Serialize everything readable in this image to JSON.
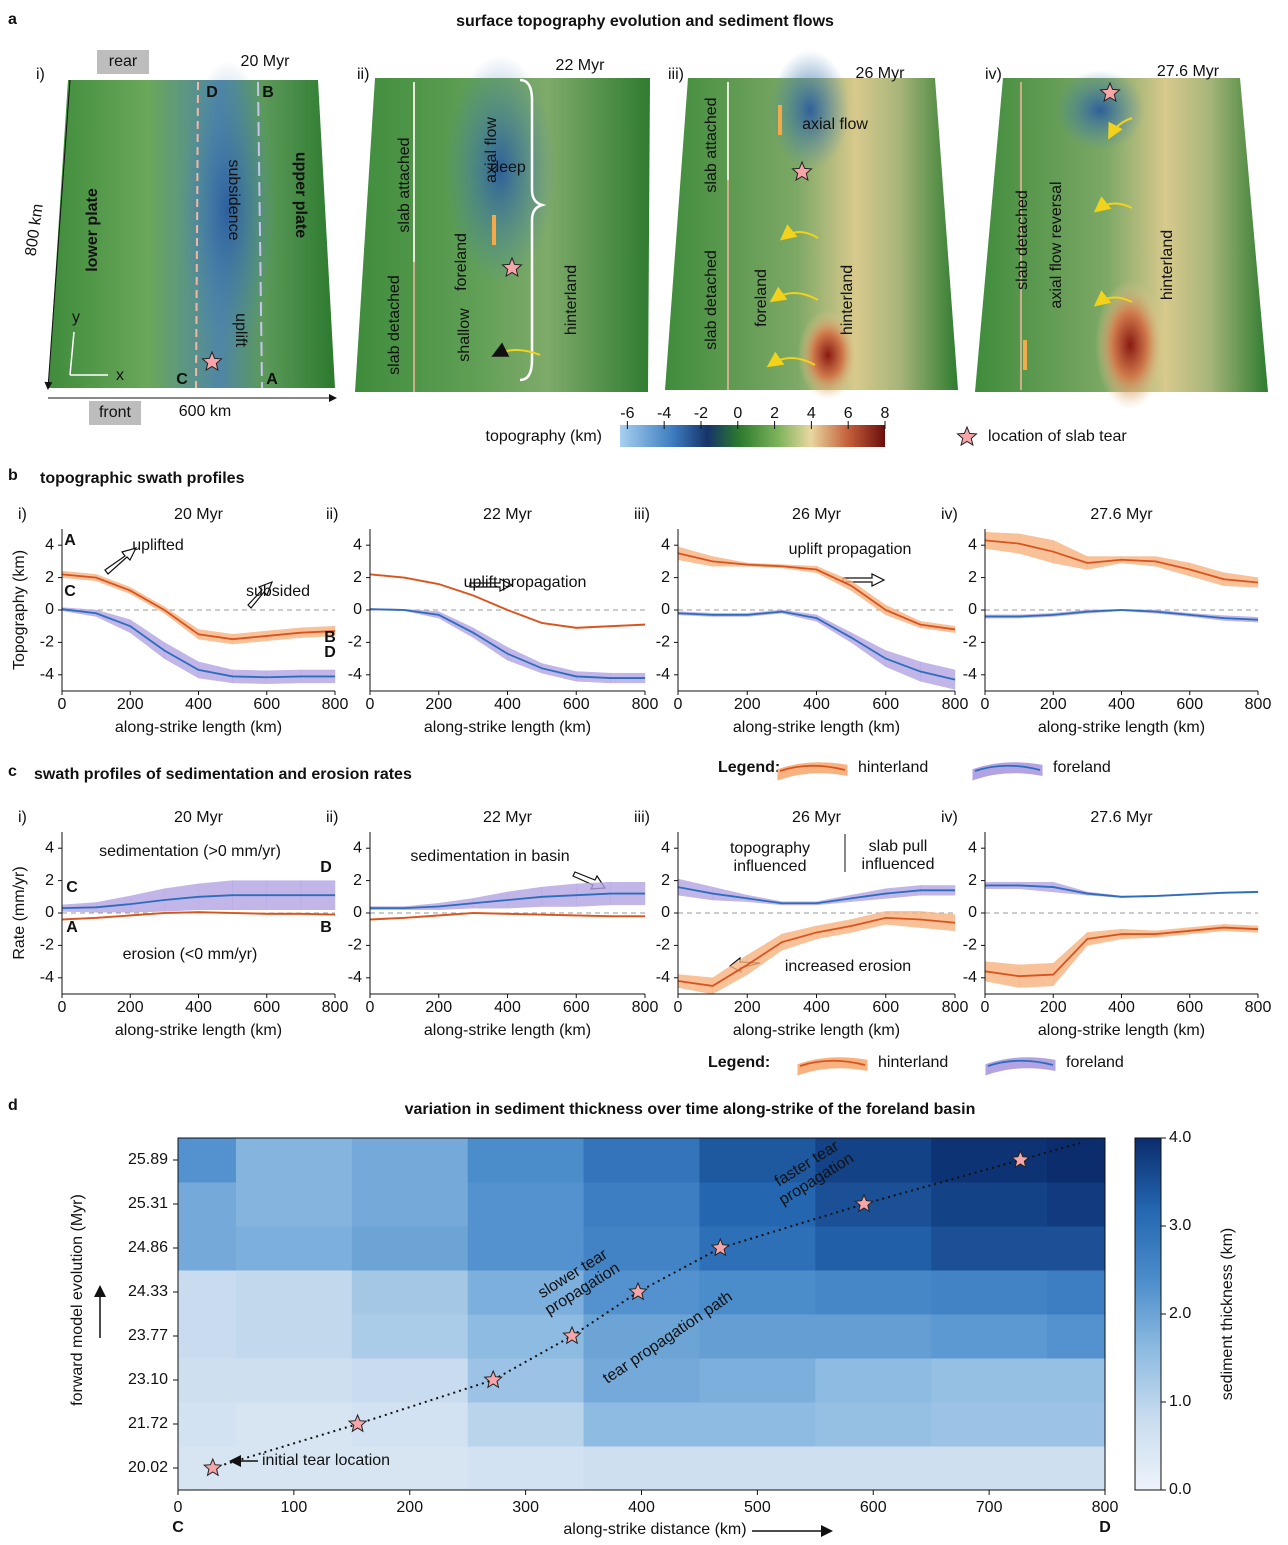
{
  "figure": {
    "a_label": "a",
    "a_title": "surface topography evolution and sediment flows",
    "b_label": "b",
    "b_title": "topographic swath profiles",
    "c_label": "c",
    "c_title": "swath profiles of sedimentation and erosion rates",
    "d_label": "d",
    "d_title": "variation in sediment thickness over time along-strike of the foreland basin"
  },
  "maps": [
    {
      "label": "i)",
      "time": "20 Myr",
      "annotations": [
        "rear",
        "front",
        "D",
        "B",
        "C",
        "A",
        "subsidence",
        "upper plate",
        "lower plate",
        "uplift",
        "800 km",
        "600 km",
        "y",
        "x"
      ]
    },
    {
      "label": "ii)",
      "time": "22 Myr",
      "annotations": [
        "slab attached",
        "slab detached",
        "foreland",
        "deep",
        "shallow",
        "axial flow",
        "hinterland"
      ]
    },
    {
      "label": "iii)",
      "time": "26 Myr",
      "annotations": [
        "slab attached",
        "slab detached",
        "axial flow",
        "foreland",
        "hinterland"
      ]
    },
    {
      "label": "iv)",
      "time": "27.6 Myr",
      "annotations": [
        "slab detached",
        "axial flow reversal",
        "hinterland"
      ]
    }
  ],
  "topo_colorbar": {
    "label": "topography (km)",
    "lim": [
      -6.4,
      8
    ],
    "ticks": [
      -6,
      -4,
      -2,
      0,
      2,
      4,
      6,
      8
    ]
  },
  "tear_legend": "location of slab tear",
  "chart_data": [
    {
      "type": "line",
      "label": "i)",
      "title": "20 Myr",
      "y_label": "Topography (km)",
      "x_label": "along-strike length (km)",
      "legend_title": "Legend:",
      "x": [
        0,
        100,
        200,
        300,
        400,
        500,
        600,
        700,
        800
      ],
      "xlim": [
        0,
        800
      ],
      "xticks": [
        0,
        200,
        400,
        600,
        800
      ],
      "ylim": [
        -5,
        5
      ],
      "yticks": [
        -4,
        -2,
        0,
        2,
        4
      ],
      "zero_line": true,
      "series": [
        {
          "name": "hinterland",
          "color": "#d9531e",
          "band_color": "#f7b27f",
          "values": [
            2.2,
            2.0,
            1.2,
            0.0,
            -1.5,
            -1.8,
            -1.6,
            -1.4,
            -1.3
          ],
          "spread": [
            0.2,
            0.2,
            0.2,
            0.2,
            0.3,
            0.3,
            0.3,
            0.3,
            0.3
          ]
        },
        {
          "name": "foreland",
          "color": "#2a6ebd",
          "band_color": "#b3a3e3",
          "values": [
            0.05,
            -0.2,
            -1.0,
            -2.5,
            -3.7,
            -4.1,
            -4.15,
            -4.1,
            -4.1
          ],
          "spread": [
            0.1,
            0.2,
            0.4,
            0.5,
            0.5,
            0.4,
            0.4,
            0.4,
            0.4
          ]
        }
      ],
      "annotations": [
        "A",
        "C",
        "B",
        "D",
        "uplifted",
        "subsided"
      ]
    },
    {
      "type": "line",
      "label": "ii)",
      "title": "22 Myr",
      "x_label": "along-strike length (km)",
      "x": [
        0,
        100,
        200,
        300,
        400,
        500,
        600,
        700,
        800
      ],
      "xlim": [
        0,
        800
      ],
      "xticks": [
        0,
        200,
        400,
        600,
        800
      ],
      "ylim": [
        -5,
        5
      ],
      "yticks": [
        -4,
        -2,
        0,
        2,
        4
      ],
      "zero_line": true,
      "series": [
        {
          "name": "hinterland",
          "color": "#d9531e",
          "band_color": "#f7b27f",
          "values": [
            2.2,
            2.0,
            1.6,
            0.9,
            0.0,
            -0.8,
            -1.1,
            -1.0,
            -0.9
          ],
          "spread": [
            0.05,
            0.05,
            0.05,
            0.05,
            0.05,
            0.05,
            0.05,
            0.05,
            0.05
          ]
        },
        {
          "name": "foreland",
          "color": "#2a6ebd",
          "band_color": "#b3a3e3",
          "values": [
            0.05,
            0.0,
            -0.3,
            -1.4,
            -2.7,
            -3.6,
            -4.1,
            -4.2,
            -4.2
          ],
          "spread": [
            0.05,
            0.05,
            0.2,
            0.3,
            0.4,
            0.3,
            0.3,
            0.3,
            0.3
          ]
        }
      ],
      "annotations": [
        "uplift propagation"
      ]
    },
    {
      "type": "line",
      "label": "iii)",
      "title": "26 Myr",
      "x_label": "along-strike length (km)",
      "x": [
        0,
        100,
        200,
        300,
        400,
        500,
        600,
        700,
        800
      ],
      "xlim": [
        0,
        800
      ],
      "xticks": [
        0,
        200,
        400,
        600,
        800
      ],
      "ylim": [
        -5,
        5
      ],
      "yticks": [
        -4,
        -2,
        0,
        2,
        4
      ],
      "zero_line": true,
      "series": [
        {
          "name": "hinterland",
          "color": "#d9531e",
          "band_color": "#f7b27f",
          "values": [
            3.5,
            3.0,
            2.8,
            2.7,
            2.5,
            1.5,
            0.0,
            -0.9,
            -1.2
          ],
          "spread": [
            0.4,
            0.3,
            0.1,
            0.1,
            0.2,
            0.3,
            0.3,
            0.2,
            0.2
          ]
        },
        {
          "name": "foreland",
          "color": "#2a6ebd",
          "band_color": "#b3a3e3",
          "values": [
            -0.2,
            -0.3,
            -0.3,
            -0.1,
            -0.5,
            -1.7,
            -3.0,
            -3.8,
            -4.3
          ],
          "spread": [
            0.1,
            0.1,
            0.1,
            0.1,
            0.2,
            0.3,
            0.5,
            0.6,
            0.6
          ]
        }
      ],
      "annotations": [
        "uplift propagation"
      ]
    },
    {
      "type": "line",
      "label": "iv)",
      "title": "27.6 Myr",
      "x_label": "along-strike length (km)",
      "x": [
        0,
        100,
        200,
        300,
        400,
        500,
        600,
        700,
        800
      ],
      "xlim": [
        0,
        800
      ],
      "xticks": [
        0,
        200,
        400,
        600,
        800
      ],
      "ylim": [
        -5,
        5
      ],
      "yticks": [
        -4,
        -2,
        0,
        2,
        4
      ],
      "zero_line": true,
      "series": [
        {
          "name": "hinterland",
          "color": "#d9531e",
          "band_color": "#f7b27f",
          "values": [
            4.3,
            4.1,
            3.6,
            2.9,
            3.1,
            3.0,
            2.5,
            1.9,
            1.7
          ],
          "spread": [
            0.5,
            0.6,
            0.7,
            0.4,
            0.2,
            0.3,
            0.4,
            0.4,
            0.3
          ]
        },
        {
          "name": "foreland",
          "color": "#2a6ebd",
          "band_color": "#b3a3e3",
          "values": [
            -0.4,
            -0.4,
            -0.3,
            -0.1,
            0.0,
            -0.1,
            -0.3,
            -0.5,
            -0.6
          ],
          "spread": [
            0.1,
            0.1,
            0.1,
            0.1,
            0.05,
            0.1,
            0.1,
            0.15,
            0.15
          ]
        }
      ]
    },
    {
      "type": "line",
      "label": "i)",
      "title": "20 Myr",
      "y_label": "Rate (mm/yr)",
      "x_label": "along-strike length (km)",
      "legend_title": "Legend:",
      "x": [
        0,
        100,
        200,
        300,
        400,
        500,
        600,
        700,
        800
      ],
      "xlim": [
        0,
        800
      ],
      "xticks": [
        0,
        200,
        400,
        600,
        800
      ],
      "ylim": [
        -5,
        5
      ],
      "yticks": [
        -4,
        -2,
        0,
        2,
        4
      ],
      "zero_line": true,
      "series": [
        {
          "name": "hinterland",
          "color": "#d9531e",
          "band_color": "#f7b27f",
          "values": [
            -0.4,
            -0.3,
            -0.15,
            0.0,
            0.05,
            0.0,
            -0.05,
            -0.05,
            -0.1
          ],
          "spread": [
            0.05,
            0.05,
            0.05,
            0.05,
            0.05,
            0.05,
            0.05,
            0.05,
            0.05
          ]
        },
        {
          "name": "foreland",
          "color": "#2a6ebd",
          "band_color": "#b3a3e3",
          "values": [
            0.3,
            0.35,
            0.55,
            0.8,
            1.0,
            1.1,
            1.1,
            1.1,
            1.1
          ],
          "spread": [
            0.2,
            0.3,
            0.5,
            0.7,
            0.8,
            0.9,
            0.9,
            0.9,
            0.9
          ]
        }
      ],
      "annotations": [
        "sedimentation (>0 mm/yr)",
        "erosion (<0 mm/yr)",
        "C",
        "D",
        "A",
        "B"
      ]
    },
    {
      "type": "line",
      "label": "ii)",
      "title": "22 Myr",
      "x_label": "along-strike length (km)",
      "x": [
        0,
        100,
        200,
        300,
        400,
        500,
        600,
        700,
        800
      ],
      "xlim": [
        0,
        800
      ],
      "xticks": [
        0,
        200,
        400,
        600,
        800
      ],
      "ylim": [
        -5,
        5
      ],
      "yticks": [
        -4,
        -2,
        0,
        2,
        4
      ],
      "zero_line": true,
      "series": [
        {
          "name": "hinterland",
          "color": "#d9531e",
          "band_color": "#f7b27f",
          "values": [
            -0.4,
            -0.3,
            -0.15,
            0.0,
            -0.05,
            -0.1,
            -0.15,
            -0.2,
            -0.2
          ],
          "spread": [
            0.05,
            0.05,
            0.05,
            0.05,
            0.05,
            0.05,
            0.05,
            0.05,
            0.05
          ]
        },
        {
          "name": "foreland",
          "color": "#2a6ebd",
          "band_color": "#b3a3e3",
          "values": [
            0.3,
            0.3,
            0.4,
            0.6,
            0.8,
            1.0,
            1.1,
            1.2,
            1.2
          ],
          "spread": [
            0.1,
            0.1,
            0.2,
            0.3,
            0.5,
            0.6,
            0.7,
            0.7,
            0.7
          ]
        }
      ],
      "annotations": [
        "sedimentation in basin"
      ]
    },
    {
      "type": "line",
      "label": "iii)",
      "title": "26 Myr",
      "x_label": "along-strike length (km)",
      "x": [
        0,
        100,
        200,
        300,
        400,
        500,
        600,
        700,
        800
      ],
      "xlim": [
        0,
        800
      ],
      "xticks": [
        0,
        200,
        400,
        600,
        800
      ],
      "ylim": [
        -5,
        5
      ],
      "yticks": [
        -4,
        -2,
        0,
        2,
        4
      ],
      "zero_line": true,
      "series": [
        {
          "name": "hinterland",
          "color": "#d9531e",
          "band_color": "#f7b27f",
          "values": [
            -4.2,
            -4.5,
            -3.2,
            -1.8,
            -1.2,
            -0.8,
            -0.3,
            -0.4,
            -0.6
          ],
          "spread": [
            0.4,
            0.5,
            0.6,
            0.5,
            0.4,
            0.4,
            0.4,
            0.5,
            0.5
          ]
        },
        {
          "name": "foreland",
          "color": "#2a6ebd",
          "band_color": "#b3a3e3",
          "values": [
            1.6,
            1.2,
            0.9,
            0.6,
            0.6,
            0.9,
            1.2,
            1.4,
            1.4
          ],
          "spread": [
            0.5,
            0.4,
            0.2,
            0.1,
            0.1,
            0.2,
            0.3,
            0.3,
            0.3
          ]
        }
      ],
      "annotations": [
        "topography influenced",
        "slab pull influenced",
        "increased erosion"
      ]
    },
    {
      "type": "line",
      "label": "iv)",
      "title": "27.6 Myr",
      "x_label": "along-strike length (km)",
      "x": [
        0,
        100,
        200,
        300,
        400,
        500,
        600,
        700,
        800
      ],
      "xlim": [
        0,
        800
      ],
      "xticks": [
        0,
        200,
        400,
        600,
        800
      ],
      "ylim": [
        -5,
        5
      ],
      "yticks": [
        -4,
        -2,
        0,
        2,
        4
      ],
      "zero_line": true,
      "series": [
        {
          "name": "hinterland",
          "color": "#d9531e",
          "band_color": "#f7b27f",
          "values": [
            -3.6,
            -3.9,
            -3.8,
            -1.6,
            -1.3,
            -1.3,
            -1.1,
            -0.9,
            -1.0
          ],
          "spread": [
            0.6,
            0.7,
            0.7,
            0.4,
            0.3,
            0.2,
            0.2,
            0.2,
            0.2
          ]
        },
        {
          "name": "foreland",
          "color": "#2a6ebd",
          "band_color": "#b3a3e3",
          "values": [
            1.7,
            1.7,
            1.6,
            1.2,
            1.0,
            1.05,
            1.15,
            1.25,
            1.3
          ],
          "spread": [
            0.2,
            0.2,
            0.3,
            0.1,
            0.05,
            0.05,
            0.05,
            0.05,
            0.05
          ]
        }
      ]
    },
    {
      "type": "heatmap",
      "y_label": "forward model evolution  (Myr)",
      "x_label": "along-strike distance (km)",
      "x_start_label": "C",
      "x_end_label": "D",
      "categories": [
        "20.02",
        "21.72",
        "23.10",
        "23.77",
        "24.33",
        "24.86",
        "25.31",
        "25.89"
      ],
      "x": [
        0,
        100,
        200,
        300,
        400,
        500,
        600,
        700,
        800
      ],
      "xlim": [
        0,
        800
      ],
      "xticks": [
        0,
        100,
        200,
        300,
        400,
        500,
        600,
        700,
        800
      ],
      "values": [
        [
          0.5,
          0.5,
          0.5,
          0.6,
          0.7,
          0.7,
          0.7,
          0.7,
          0.7
        ],
        [
          0.6,
          0.5,
          0.6,
          1.0,
          1.6,
          1.6,
          1.5,
          1.4,
          1.4
        ],
        [
          0.7,
          0.7,
          0.8,
          1.4,
          1.9,
          1.8,
          1.6,
          1.5,
          1.5
        ],
        [
          0.8,
          0.9,
          1.2,
          1.6,
          2.0,
          2.1,
          2.1,
          2.2,
          2.3
        ],
        [
          0.8,
          0.9,
          1.3,
          1.8,
          2.3,
          2.4,
          2.5,
          2.6,
          2.7
        ],
        [
          1.9,
          1.8,
          2.0,
          2.3,
          2.6,
          3.0,
          3.3,
          3.5,
          3.5
        ],
        [
          1.9,
          1.7,
          1.9,
          2.3,
          2.7,
          3.2,
          3.5,
          3.7,
          3.8
        ],
        [
          2.3,
          1.7,
          1.9,
          2.4,
          2.9,
          3.4,
          3.7,
          3.9,
          4.0
        ]
      ],
      "colorscale": [
        "#eef3fa",
        "#c9dcef",
        "#8dbbe1",
        "#4b8ccb",
        "#2466b0",
        "#0b2c6d"
      ],
      "colorbar_label": "sediment thickness (km)",
      "clim": [
        0,
        4
      ],
      "cticks": [
        {
          "value": 0,
          "label": "0.0"
        },
        {
          "value": 1,
          "label": "1.0"
        },
        {
          "value": 2,
          "label": "2.0"
        },
        {
          "value": 3,
          "label": "3.0"
        },
        {
          "value": 4,
          "label": "4.0"
        }
      ],
      "tear_x": [
        30,
        155,
        272,
        340,
        397,
        468,
        592,
        727
      ],
      "annotations": [
        "initial tear location",
        "slower tear propagation",
        "faster tear propagation",
        "tear propagation path"
      ]
    }
  ]
}
